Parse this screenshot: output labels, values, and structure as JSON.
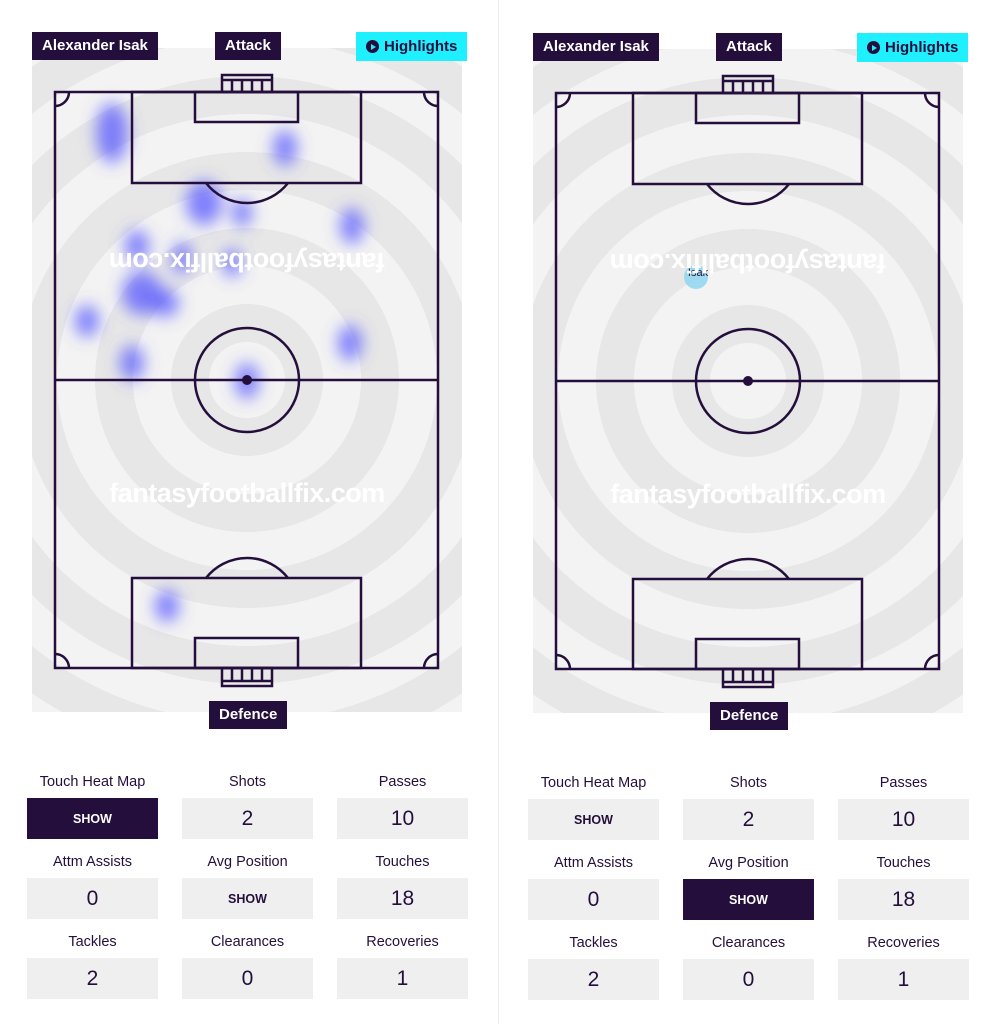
{
  "panels": [
    {
      "player": "Alexander Isak",
      "attack_label": "Attack",
      "defence_label": "Defence",
      "highlights_label": "Highlights",
      "watermark": "fantasyfootballfix.com",
      "mode": "touch-heat-map",
      "stats": [
        {
          "label": "Touch Heat Map",
          "value": "SHOW",
          "button": true,
          "active": true
        },
        {
          "label": "Shots",
          "value": "2"
        },
        {
          "label": "Passes",
          "value": "10"
        },
        {
          "label": "Attm Assists",
          "value": "0"
        },
        {
          "label": "Avg Position",
          "value": "SHOW",
          "button": true,
          "active": false
        },
        {
          "label": "Touches",
          "value": "18"
        },
        {
          "label": "Tackles",
          "value": "2"
        },
        {
          "label": "Clearances",
          "value": "0"
        },
        {
          "label": "Recoveries",
          "value": "1"
        }
      ]
    },
    {
      "player": "Alexander Isak",
      "attack_label": "Attack",
      "defence_label": "Defence",
      "highlights_label": "Highlights",
      "watermark": "fantasyfootballfix.com",
      "mode": "avg-position",
      "avg_marker_label": "Isak",
      "stats": [
        {
          "label": "Touch Heat Map",
          "value": "SHOW",
          "button": true,
          "active": false
        },
        {
          "label": "Shots",
          "value": "2"
        },
        {
          "label": "Passes",
          "value": "10"
        },
        {
          "label": "Attm Assists",
          "value": "0"
        },
        {
          "label": "Avg Position",
          "value": "SHOW",
          "button": true,
          "active": true
        },
        {
          "label": "Touches",
          "value": "18"
        },
        {
          "label": "Tackles",
          "value": "2"
        },
        {
          "label": "Clearances",
          "value": "0"
        },
        {
          "label": "Recoveries",
          "value": "1"
        }
      ]
    }
  ],
  "colors": {
    "navy": "#240f3c",
    "highlight": "#1ef0ff",
    "heat": "#5a5aff",
    "marker": "#8fd6ee"
  }
}
